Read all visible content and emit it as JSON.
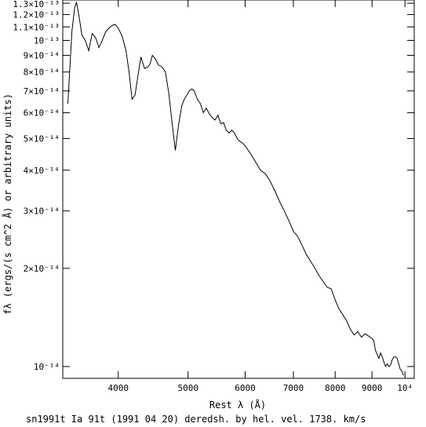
{
  "chart_data": {
    "type": "line",
    "title": "sn1991t Ia 91t (1991 04 20) deredsh. by hel. vel.  1738. km/s",
    "xlabel": "Rest λ (Å)",
    "ylabel": "fλ (ergs/(s cm^2 Å) or arbitrary units)",
    "x_scale": "log",
    "y_scale": "log",
    "xlim": [
      3350,
      10300
    ],
    "ylim": [
      9.2e-15,
      1.33e-13
    ],
    "x_ticks": [
      {
        "value": 4000,
        "label": "4000"
      },
      {
        "value": 5000,
        "label": "5000"
      },
      {
        "value": 6000,
        "label": "6000"
      },
      {
        "value": 7000,
        "label": "7000"
      },
      {
        "value": 8000,
        "label": "8000"
      },
      {
        "value": 9000,
        "label": "9000"
      },
      {
        "value": 10000,
        "label": "10⁴"
      }
    ],
    "y_ticks": [
      {
        "value": 1e-14,
        "label": "10⁻¹⁴"
      },
      {
        "value": 2e-14,
        "label": "2×10⁻¹⁴"
      },
      {
        "value": 3e-14,
        "label": "3×10⁻¹⁴"
      },
      {
        "value": 4e-14,
        "label": "4×10⁻¹⁴"
      },
      {
        "value": 5e-14,
        "label": "5×10⁻¹⁴"
      },
      {
        "value": 6e-14,
        "label": "6×10⁻¹⁴"
      },
      {
        "value": 7e-14,
        "label": "7×10⁻¹⁴"
      },
      {
        "value": 8e-14,
        "label": "8×10⁻¹⁴"
      },
      {
        "value": 9e-14,
        "label": "9×10⁻¹⁴"
      },
      {
        "value": 1e-13,
        "label": "10⁻¹³"
      },
      {
        "value": 1.1e-13,
        "label": "1.1×10⁻¹³"
      },
      {
        "value": 1.2e-13,
        "label": "1.2×10⁻¹³"
      },
      {
        "value": 1.3e-13,
        "label": "1.3×10⁻¹³"
      }
    ],
    "grid": false,
    "series": [
      {
        "color": "#000000",
        "x": [
          3405,
          3450,
          3480,
          3500,
          3530,
          3560,
          3600,
          3640,
          3680,
          3720,
          3760,
          3800,
          3840,
          3880,
          3920,
          3960,
          4000,
          4050,
          4100,
          4140,
          4180,
          4220,
          4260,
          4300,
          4350,
          4400,
          4430,
          4460,
          4500,
          4550,
          4600,
          4650,
          4700,
          4750,
          4800,
          4850,
          4900,
          4940,
          4980,
          5020,
          5060,
          5100,
          5150,
          5200,
          5250,
          5300,
          5350,
          5400,
          5450,
          5500,
          5550,
          5600,
          5650,
          5700,
          5750,
          5800,
          5850,
          5900,
          5950,
          6000,
          6100,
          6200,
          6300,
          6400,
          6500,
          6600,
          6700,
          6800,
          6900,
          7000,
          7100,
          7200,
          7300,
          7400,
          7500,
          7600,
          7700,
          7800,
          7900,
          8000,
          8100,
          8200,
          8300,
          8400,
          8500,
          8600,
          8700,
          8800,
          8900,
          9000,
          9050,
          9100,
          9150,
          9200,
          9250,
          9300,
          9350,
          9400,
          9450,
          9500,
          9550,
          9600,
          9650,
          9700,
          9750,
          9800,
          9850,
          9900,
          9950
        ],
        "y": [
          6.4e-14,
          1.07e-13,
          1.26e-13,
          1.31e-13,
          1.18e-13,
          1.04e-13,
          1e-13,
          9.3e-14,
          1.05e-13,
          1.02e-13,
          9.5e-14,
          1e-13,
          1.06e-13,
          1.09e-13,
          1.11e-13,
          1.12e-13,
          1.09e-13,
          1.03e-13,
          9.3e-14,
          8e-14,
          6.6e-14,
          6.8e-14,
          7.8e-14,
          8.9e-14,
          8.2e-14,
          8.3e-14,
          8.5e-14,
          9e-14,
          8.8e-14,
          8.4e-14,
          8.3e-14,
          8e-14,
          6.9e-14,
          5.6e-14,
          4.6e-14,
          5.5e-14,
          6.3e-14,
          6.6e-14,
          6.8e-14,
          7e-14,
          7.1e-14,
          7e-14,
          6.6e-14,
          6.4e-14,
          6e-14,
          6.2e-14,
          5.95e-14,
          5.8e-14,
          5.7e-14,
          5.9e-14,
          5.55e-14,
          5.6e-14,
          5.3e-14,
          5.2e-14,
          5.3e-14,
          5.2e-14,
          5e-14,
          4.9e-14,
          4.85e-14,
          4.75e-14,
          4.5e-14,
          4.25e-14,
          4e-14,
          3.9e-14,
          3.7e-14,
          3.45e-14,
          3.2e-14,
          3e-14,
          2.8e-14,
          2.6e-14,
          2.5e-14,
          2.35e-14,
          2.2e-14,
          2.1e-14,
          2e-14,
          1.9e-14,
          1.82e-14,
          1.75e-14,
          1.73e-14,
          1.6e-14,
          1.5e-14,
          1.44e-14,
          1.38e-14,
          1.3e-14,
          1.25e-14,
          1.28e-14,
          1.23e-14,
          1.26e-14,
          1.24e-14,
          1.22e-14,
          1.2e-14,
          1.12e-14,
          1.09e-14,
          1.06e-14,
          1.1e-14,
          1.07e-14,
          1.03e-14,
          1e-14,
          1.02e-14,
          1e-14,
          1.01e-14,
          1.05e-14,
          1.07e-14,
          1.07e-14,
          1.06e-14,
          1.02e-14,
          9.8e-15,
          9.7e-15,
          9.4e-15
        ]
      }
    ]
  }
}
